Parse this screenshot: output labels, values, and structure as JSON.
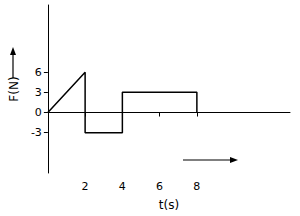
{
  "chart_data": {
    "type": "line",
    "x_label": "t(s)",
    "y_label": "F(N)",
    "x": [
      0,
      2,
      2,
      4,
      4,
      8,
      8
    ],
    "values": [
      0,
      6,
      -3,
      -3,
      3,
      3,
      0
    ],
    "color": "#000000",
    "xlim": [
      0,
      13
    ],
    "xticks": [
      2,
      4,
      6,
      8
    ],
    "ylim": [
      -9,
      16
    ],
    "yticks": [
      -3,
      0,
      3,
      6
    ],
    "grid": false
  }
}
